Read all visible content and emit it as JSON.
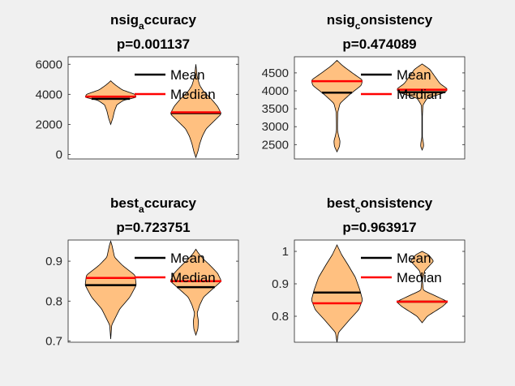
{
  "figure": {
    "background": "#f0f0f0",
    "axes_background": "#ffffff"
  },
  "colors": {
    "violin_fill": "#ffc080",
    "violin_edge": "#000000",
    "mean": "#000000",
    "median": "#ff0000"
  },
  "chart_data": [
    {
      "type": "violin",
      "title_main": "nsig",
      "title_sub": "a",
      "title_rest": "ccuracy",
      "pvalue_label": "p=0.001137",
      "ylim": [
        -300,
        6500
      ],
      "yticks": [
        0,
        2000,
        4000,
        6000
      ],
      "ytick_labels": [
        "0",
        "2000",
        "4000",
        "6000"
      ],
      "legend": {
        "placement": "top-right",
        "entries": [
          "Mean",
          "Median"
        ]
      },
      "groups": [
        {
          "mean": 3700,
          "median": 3850,
          "profile": [
            [
              2000,
              0
            ],
            [
              2400,
              0.08
            ],
            [
              2900,
              0.15
            ],
            [
              3300,
              0.24
            ],
            [
              3600,
              0.5
            ],
            [
              3800,
              1
            ],
            [
              4000,
              0.95
            ],
            [
              4300,
              0.45
            ],
            [
              4600,
              0.2
            ],
            [
              4800,
              0.06
            ],
            [
              4900,
              0
            ]
          ]
        },
        {
          "mean": 2750,
          "median": 2800,
          "profile": [
            [
              -200,
              0
            ],
            [
              200,
              0.08
            ],
            [
              700,
              0.15
            ],
            [
              1200,
              0.25
            ],
            [
              1700,
              0.4
            ],
            [
              2200,
              0.7
            ],
            [
              2700,
              1
            ],
            [
              3200,
              0.85
            ],
            [
              3700,
              0.6
            ],
            [
              4200,
              0.3
            ],
            [
              4600,
              0.15
            ],
            [
              5200,
              0.05
            ],
            [
              6000,
              0
            ]
          ]
        }
      ]
    },
    {
      "type": "violin",
      "title_main": "nsig",
      "title_sub": "c",
      "title_rest": "onsistency",
      "pvalue_label": "p=0.474089",
      "ylim": [
        2100,
        4950
      ],
      "yticks": [
        2500,
        3000,
        3500,
        4000,
        4500
      ],
      "ytick_labels": [
        "2500",
        "3000",
        "3500",
        "4000",
        "4500"
      ],
      "legend": {
        "placement": "top-right",
        "entries": [
          "Mean",
          "Median"
        ]
      },
      "groups": [
        {
          "mean": 3950,
          "median": 4270,
          "profile": [
            [
              2300,
              0
            ],
            [
              2450,
              0.1
            ],
            [
              2600,
              0.12
            ],
            [
              2750,
              0.06
            ],
            [
              2900,
              0.02
            ],
            [
              3100,
              0.02
            ],
            [
              3400,
              0.03
            ],
            [
              3650,
              0.12
            ],
            [
              3900,
              0.5
            ],
            [
              4150,
              0.95
            ],
            [
              4300,
              1
            ],
            [
              4500,
              0.6
            ],
            [
              4700,
              0.22
            ],
            [
              4850,
              0
            ]
          ]
        },
        {
          "mean": 3960,
          "median": 4030,
          "profile": [
            [
              2350,
              0
            ],
            [
              2450,
              0.06
            ],
            [
              2550,
              0.05
            ],
            [
              2700,
              0.01
            ],
            [
              3300,
              0.01
            ],
            [
              3600,
              0.03
            ],
            [
              3800,
              0.2
            ],
            [
              3950,
              0.9
            ],
            [
              4050,
              1
            ],
            [
              4200,
              0.7
            ],
            [
              4400,
              0.5
            ],
            [
              4600,
              0.3
            ],
            [
              4750,
              0
            ]
          ]
        }
      ]
    },
    {
      "type": "violin",
      "title_main": "best",
      "title_sub": "a",
      "title_rest": "ccuracy",
      "pvalue_label": "p=0.723751",
      "ylim": [
        0.697,
        0.953
      ],
      "yticks": [
        0.7,
        0.8,
        0.9
      ],
      "ytick_labels": [
        "0.7",
        "0.8",
        "0.9"
      ],
      "legend": {
        "placement": "top-right",
        "entries": [
          "Mean",
          "Median"
        ]
      },
      "groups": [
        {
          "mean": 0.84,
          "median": 0.858,
          "profile": [
            [
              0.705,
              0
            ],
            [
              0.74,
              0.04
            ],
            [
              0.78,
              0.35
            ],
            [
              0.81,
              0.75
            ],
            [
              0.84,
              1
            ],
            [
              0.865,
              0.95
            ],
            [
              0.89,
              0.45
            ],
            [
              0.91,
              0.15
            ],
            [
              0.94,
              0.05
            ],
            [
              0.95,
              0
            ]
          ]
        },
        {
          "mean": 0.835,
          "median": 0.85,
          "profile": [
            [
              0.715,
              0
            ],
            [
              0.73,
              0.08
            ],
            [
              0.75,
              0.1
            ],
            [
              0.77,
              0.05
            ],
            [
              0.79,
              0.15
            ],
            [
              0.81,
              0.3
            ],
            [
              0.83,
              0.65
            ],
            [
              0.85,
              1
            ],
            [
              0.87,
              0.85
            ],
            [
              0.89,
              0.55
            ],
            [
              0.905,
              0.3
            ],
            [
              0.92,
              0.1
            ],
            [
              0.93,
              0
            ]
          ]
        }
      ]
    },
    {
      "type": "violin",
      "title_main": "best",
      "title_sub": "c",
      "title_rest": "onsistency",
      "pvalue_label": "p=0.963917",
      "ylim": [
        0.72,
        1.035
      ],
      "yticks": [
        0.8,
        0.9,
        1.0
      ],
      "ytick_labels": [
        "0.8",
        "0.9",
        "1"
      ],
      "legend": {
        "placement": "top-right",
        "entries": [
          "Mean",
          "Median"
        ]
      },
      "groups": [
        {
          "mean": 0.873,
          "median": 0.84,
          "profile": [
            [
              0.72,
              0
            ],
            [
              0.75,
              0.06
            ],
            [
              0.79,
              0.5
            ],
            [
              0.82,
              0.85
            ],
            [
              0.85,
              1
            ],
            [
              0.88,
              0.9
            ],
            [
              0.92,
              0.72
            ],
            [
              0.96,
              0.42
            ],
            [
              0.99,
              0.18
            ],
            [
              1.02,
              0
            ]
          ]
        },
        {
          "mean": 0.845,
          "median": 0.845,
          "profile": [
            [
              0.78,
              0
            ],
            [
              0.8,
              0.2
            ],
            [
              0.83,
              0.8
            ],
            [
              0.845,
              1
            ],
            [
              0.86,
              0.6
            ],
            [
              0.88,
              0.05
            ],
            [
              0.91,
              0.01
            ],
            [
              0.94,
              0.1
            ],
            [
              0.97,
              0.45
            ],
            [
              0.99,
              0.25
            ],
            [
              1.0,
              0
            ]
          ]
        }
      ]
    }
  ]
}
